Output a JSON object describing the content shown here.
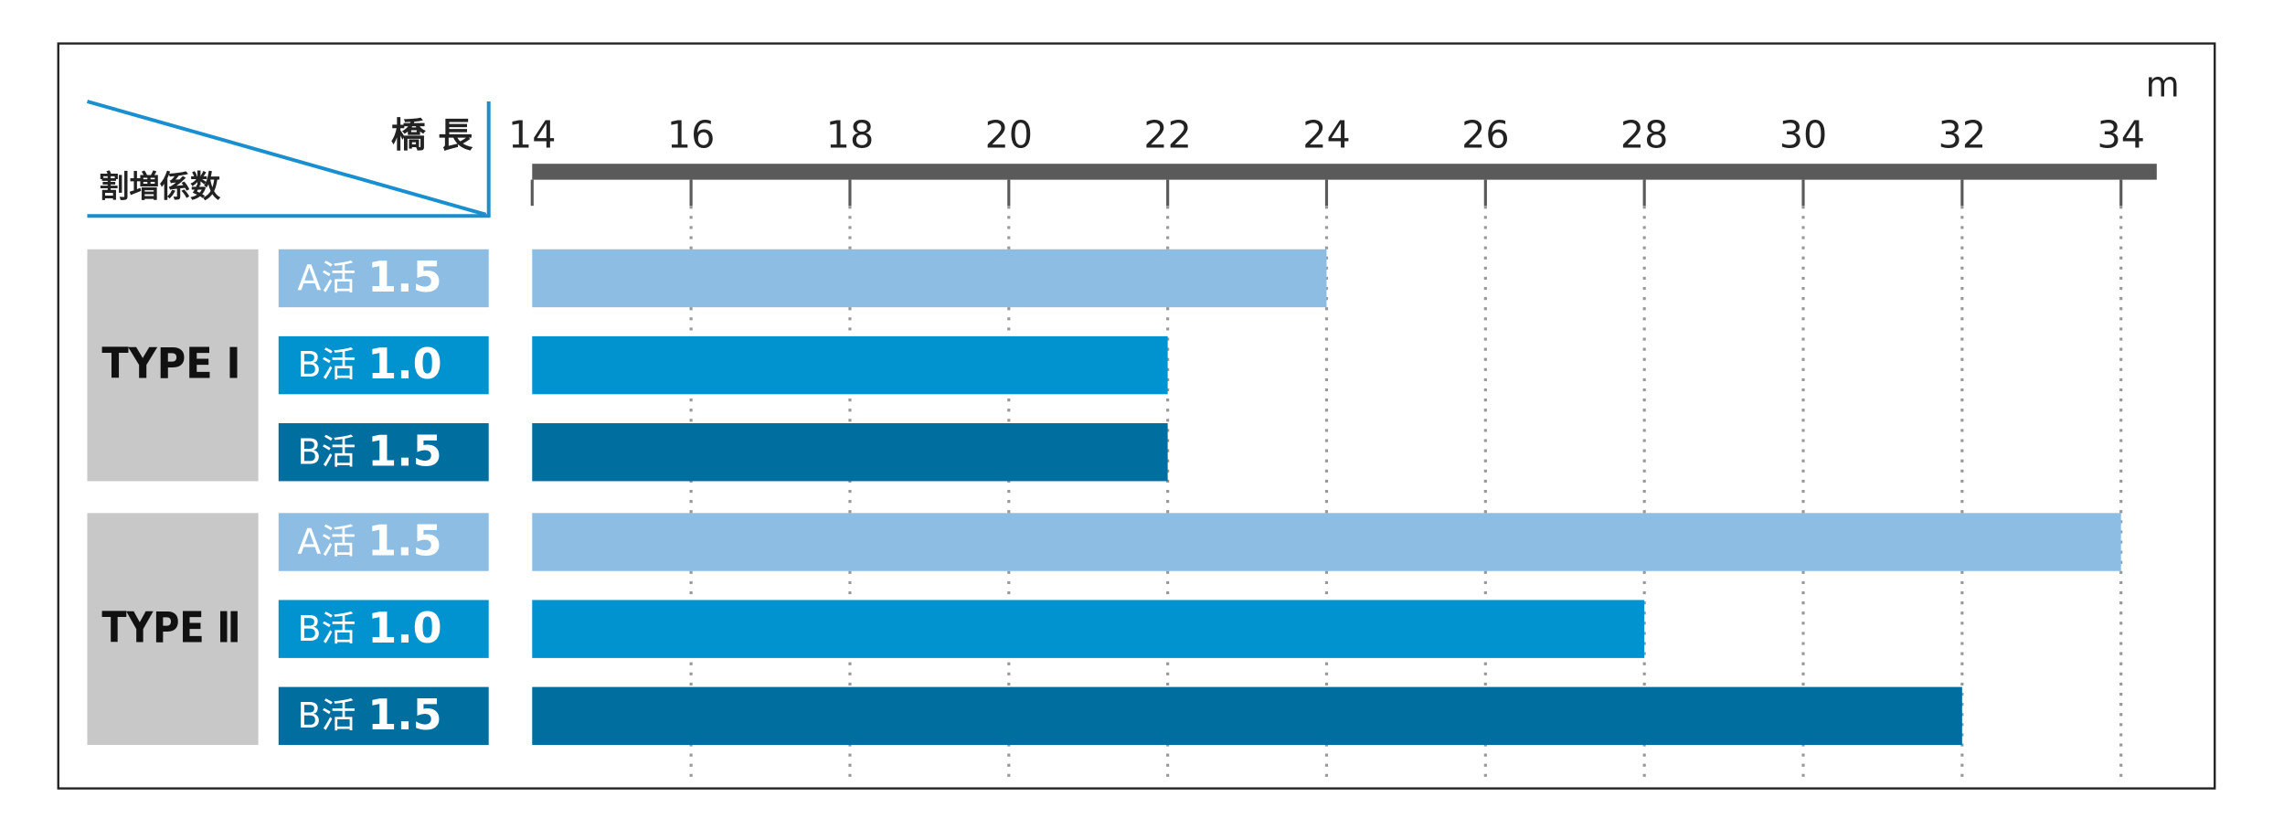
{
  "chart_data": {
    "type": "barh",
    "axis_label": "橋 長",
    "corner_label": "割増係数",
    "unit": "m",
    "xlim": [
      14,
      34.45
    ],
    "xticks": [
      14,
      16,
      18,
      20,
      22,
      24,
      26,
      28,
      30,
      32,
      34
    ],
    "grid": true,
    "groups": [
      {
        "name": "TYPE Ⅰ",
        "categories": [
          {
            "grade": "A活",
            "factor": "1.5"
          },
          {
            "grade": "B活",
            "factor": "1.0"
          },
          {
            "grade": "B活",
            "factor": "1.5"
          }
        ],
        "values": [
          24,
          22,
          22
        ],
        "colors": [
          "#8dbde3",
          "#0093d0",
          "#006fa0"
        ]
      },
      {
        "name": "TYPE Ⅱ",
        "categories": [
          {
            "grade": "A活",
            "factor": "1.5"
          },
          {
            "grade": "B活",
            "factor": "1.0"
          },
          {
            "grade": "B活",
            "factor": "1.5"
          }
        ],
        "values": [
          34,
          28,
          32
        ],
        "colors": [
          "#8dbde3",
          "#0093d0",
          "#006fa0"
        ]
      }
    ]
  }
}
